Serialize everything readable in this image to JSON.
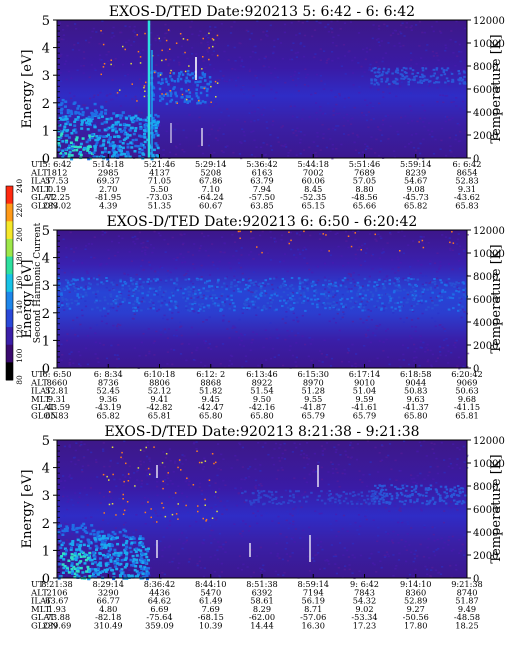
{
  "chart_data": [
    {
      "type": "heatmap",
      "title": "EXOS-D/TED   Date:920213  5: 6:42 - 6: 6:42",
      "ylabel": "Energy [eV]",
      "ylabel_right": "Temperature [K]",
      "ylim": [
        0,
        5
      ],
      "yticks": [
        "0",
        "1",
        "2",
        "3",
        "4",
        "5"
      ],
      "ylim_right": [
        0,
        12000
      ],
      "yticks_right": [
        "0",
        "2000",
        "4000",
        "6000",
        "8000",
        "10000",
        "12000"
      ],
      "rows": [
        {
          "label": "UT",
          "values": [
            "5: 6:42",
            "5:14:18",
            "5:21:46",
            "5:29:14",
            "5:36:42",
            "5:44:18",
            "5:51:46",
            "5:59:14",
            "6: 6:42"
          ]
        },
        {
          "label": "ALT",
          "values": [
            "1812",
            "2985",
            "4137",
            "5208",
            "6163",
            "7002",
            "7689",
            "8239",
            "8654"
          ]
        },
        {
          "label": "ILAT",
          "values": [
            "57.53",
            "69.37",
            "71.05",
            "67.86",
            "63.79",
            "60.06",
            "57.05",
            "54.67",
            "52.83"
          ]
        },
        {
          "label": "MLT",
          "values": [
            "0.19",
            "2.70",
            "5.50",
            "7.10",
            "7.94",
            "8.45",
            "8.80",
            "9.08",
            "9.31"
          ]
        },
        {
          "label": "GLAT",
          "values": [
            "-72.25",
            "-81.95",
            "-73.03",
            "-64.24",
            "-57.50",
            "-52.35",
            "-48.56",
            "-45.73",
            "-43.62"
          ]
        },
        {
          "label": "GLON",
          "values": [
            "283.02",
            "4.39",
            "51.35",
            "60.67",
            "63.85",
            "65.15",
            "65.66",
            "65.82",
            "65.83"
          ]
        }
      ]
    },
    {
      "type": "heatmap",
      "title": "EXOS-D/TED   Date:920213  6: 6:50 - 6:20:42",
      "ylabel": "Energy [eV]",
      "ylabel_right": "Temperature [K]",
      "ylim": [
        0,
        5
      ],
      "yticks": [
        "0",
        "1",
        "2",
        "3",
        "4",
        "5"
      ],
      "ylim_right": [
        0,
        12000
      ],
      "yticks_right": [
        "0",
        "2000",
        "4000",
        "6000",
        "8000",
        "10000",
        "12000"
      ],
      "rows": [
        {
          "label": "UT",
          "values": [
            "6: 6:50",
            "6: 8:34",
            "6:10:18",
            "6:12: 2",
            "6:13:46",
            "6:15:30",
            "6:17:14",
            "6:18:58",
            "6:20:42"
          ]
        },
        {
          "label": "ALT",
          "values": [
            "8660",
            "8736",
            "8806",
            "8868",
            "8922",
            "8970",
            "9010",
            "9044",
            "9069"
          ]
        },
        {
          "label": "ILAT",
          "values": [
            "52.81",
            "52.45",
            "52.12",
            "51.82",
            "51.54",
            "51.28",
            "51.04",
            "50.83",
            "50.63"
          ]
        },
        {
          "label": "MLT",
          "values": [
            "9.31",
            "9.36",
            "9.41",
            "9.45",
            "9.50",
            "9.55",
            "9.59",
            "9.63",
            "9.68"
          ]
        },
        {
          "label": "GLAT",
          "values": [
            "-43.59",
            "-43.19",
            "-42.82",
            "-42.47",
            "-42.16",
            "-41.87",
            "-41.61",
            "-41.37",
            "-41.15"
          ]
        },
        {
          "label": "GLON",
          "values": [
            "65.83",
            "65.82",
            "65.81",
            "65.80",
            "65.80",
            "65.79",
            "65.79",
            "65.80",
            "65.81"
          ]
        }
      ]
    },
    {
      "type": "heatmap",
      "title": "EXOS-D/TED   Date:920213  8:21:38 - 9:21:38",
      "ylabel": "Energy [eV]",
      "ylabel_right": "Temperature [K]",
      "ylim": [
        0,
        5
      ],
      "yticks": [
        "0",
        "1",
        "2",
        "3",
        "4",
        "5"
      ],
      "ylim_right": [
        0,
        12000
      ],
      "yticks_right": [
        "0",
        "2000",
        "4000",
        "6000",
        "8000",
        "10000",
        "12000"
      ],
      "rows": [
        {
          "label": "UT",
          "values": [
            "8:21:38",
            "8:29:14",
            "8:36:42",
            "8:44:10",
            "8:51:38",
            "8:59:14",
            "9: 6:42",
            "9:14:10",
            "9:21:38"
          ]
        },
        {
          "label": "ALT",
          "values": [
            "2106",
            "3290",
            "4436",
            "5470",
            "6392",
            "7194",
            "7843",
            "8360",
            "8740"
          ]
        },
        {
          "label": "ILAT",
          "values": [
            "63.67",
            "66.77",
            "64.62",
            "61.49",
            "58.61",
            "56.19",
            "54.32",
            "52.89",
            "51.87"
          ]
        },
        {
          "label": "MLT",
          "values": [
            "1.93",
            "4.80",
            "6.69",
            "7.69",
            "8.29",
            "8.71",
            "9.02",
            "9.27",
            "9.49"
          ]
        },
        {
          "label": "GLAT",
          "values": [
            "-73.88",
            "-82.18",
            "-75.64",
            "-68.15",
            "-62.00",
            "-57.06",
            "-53.34",
            "-50.56",
            "-48.58"
          ]
        },
        {
          "label": "GLON",
          "values": [
            "239.69",
            "310.49",
            "359.09",
            "10.39",
            "14.44",
            "16.30",
            "17.23",
            "17.80",
            "18.25"
          ]
        }
      ]
    }
  ],
  "colorbar": {
    "label": "Second Harmonic Current",
    "ticks": [
      "80",
      "100",
      "120",
      "140",
      "160",
      "180",
      "200",
      "220",
      "240"
    ],
    "colors": [
      "#000000",
      "#3a0a6e",
      "#3b1fa8",
      "#2a48d8",
      "#1e86ea",
      "#18c2e6",
      "#2ee0a0",
      "#9ee84a",
      "#f5e82a",
      "#ff9a18",
      "#ff2a10"
    ]
  }
}
